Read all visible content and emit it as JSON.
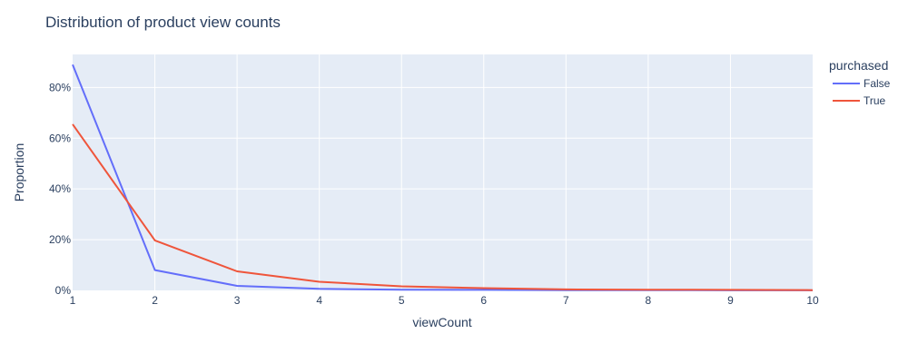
{
  "chart_data": {
    "type": "line",
    "title": "Distribution of product view counts",
    "xlabel": "viewCount",
    "ylabel": "Proportion",
    "xlim": [
      1,
      10
    ],
    "ylim": [
      0,
      0.93
    ],
    "x_ticks": [
      1,
      2,
      3,
      4,
      5,
      6,
      7,
      8,
      9,
      10
    ],
    "y_ticks": [
      0,
      0.2,
      0.4,
      0.6,
      0.8
    ],
    "y_tick_labels": [
      "0%",
      "20%",
      "40%",
      "60%",
      "80%"
    ],
    "grid": true,
    "legend": {
      "title": "purchased",
      "position": "right"
    },
    "x": [
      1,
      2,
      3,
      4,
      5,
      6,
      7,
      8,
      9,
      10
    ],
    "series": [
      {
        "name": "False",
        "color": "#636efa",
        "values": [
          0.89,
          0.08,
          0.018,
          0.006,
          0.003,
          0.002,
          0.001,
          0.001,
          0.0005,
          0.0005
        ]
      },
      {
        "name": "True",
        "color": "#ef553b",
        "values": [
          0.655,
          0.197,
          0.075,
          0.034,
          0.016,
          0.009,
          0.004,
          0.003,
          0.002,
          0.001
        ]
      }
    ],
    "plot_background": "#e5ecf6",
    "gridline_color": "#ffffff"
  }
}
